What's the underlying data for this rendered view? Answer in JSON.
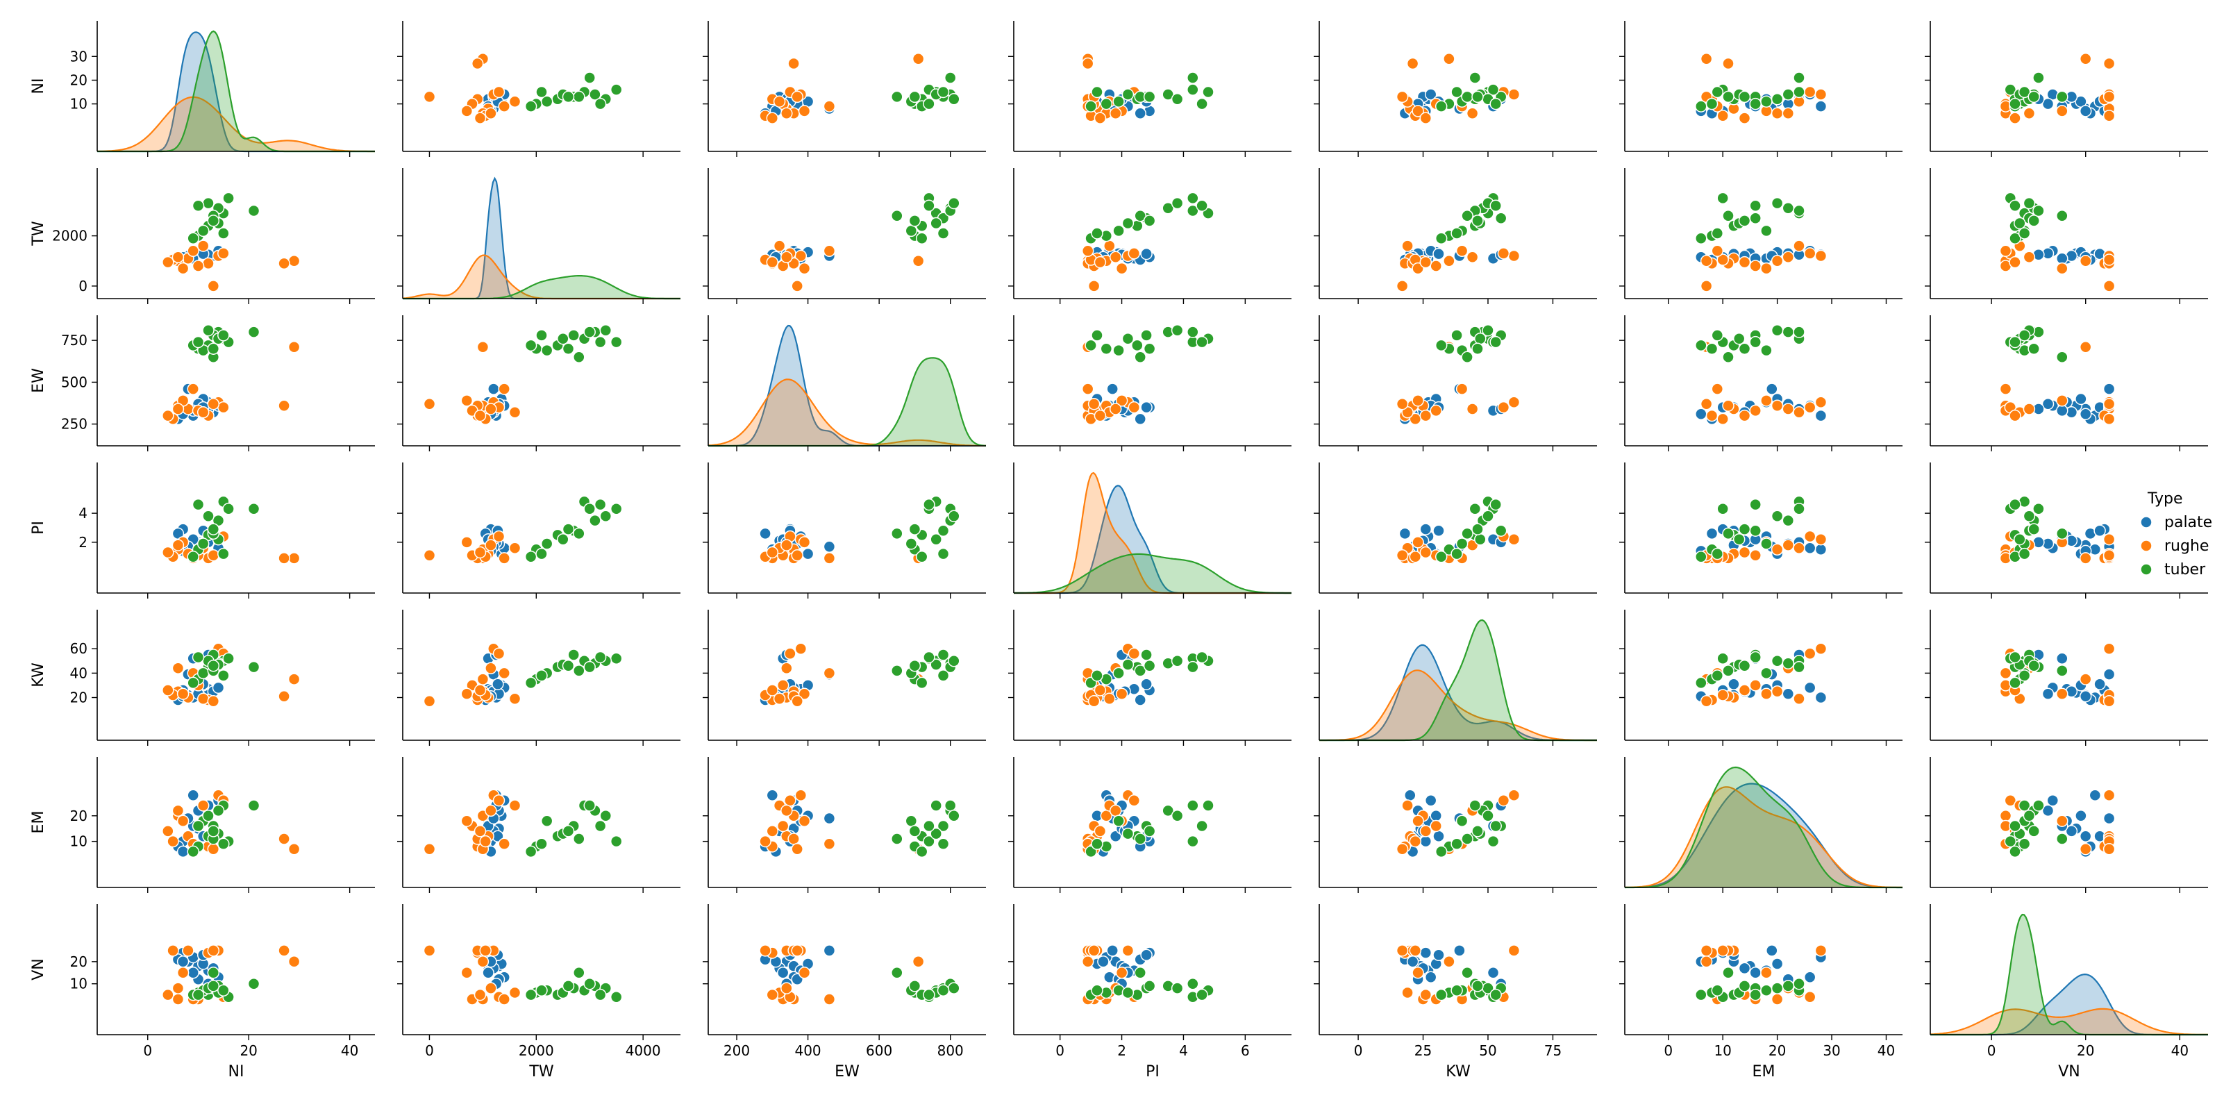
{
  "chart_data": {
    "type": "scatter",
    "title": "",
    "variables": [
      "NI",
      "TW",
      "EW",
      "PI",
      "KW",
      "EM",
      "VN"
    ],
    "ranges": {
      "NI": [
        -10,
        45
      ],
      "TW": [
        -500,
        4700
      ],
      "EW": [
        120,
        900
      ],
      "PI": [
        -1.5,
        7.5
      ],
      "KW": [
        -15,
        92
      ],
      "EM": [
        -8,
        43
      ],
      "VN": [
        -13,
        46
      ]
    },
    "ticks": {
      "NI": [
        0,
        20,
        40
      ],
      "TW": [
        0,
        2000,
        4000
      ],
      "EW": [
        200,
        400,
        600,
        800
      ],
      "PI": [
        0,
        2,
        4,
        6
      ],
      "KW": [
        0,
        25,
        50,
        75
      ],
      "EM": [
        0,
        10,
        20,
        30,
        40
      ],
      "VN": [
        0,
        20,
        40
      ]
    },
    "yticks": {
      "NI": [
        10,
        20,
        30
      ],
      "TW": [
        0,
        2000
      ],
      "EW": [
        250,
        500,
        750
      ],
      "PI": [
        2,
        4
      ],
      "KW": [
        20,
        40,
        60
      ],
      "EM": [
        10,
        20
      ],
      "VN": [
        10,
        20
      ]
    },
    "legend": {
      "title": "Type",
      "position": "right",
      "entries": [
        "palate",
        "rughe",
        "tuber"
      ]
    },
    "series": [
      {
        "name": "palate",
        "color": "#1f77b4",
        "points": [
          [
            8,
            1200,
            340,
            1.8,
            22,
            12,
            20
          ],
          [
            10,
            1300,
            360,
            2.0,
            24,
            15,
            18
          ],
          [
            12,
            1100,
            380,
            2.4,
            27,
            18,
            16
          ],
          [
            9,
            1250,
            300,
            1.5,
            20,
            28,
            22
          ],
          [
            7,
            1150,
            350,
            2.9,
            26,
            10,
            24
          ],
          [
            11,
            1350,
            400,
            1.2,
            30,
            20,
            19
          ],
          [
            13,
            1200,
            320,
            2.1,
            25,
            14,
            17
          ],
          [
            6,
            1050,
            280,
            2.6,
            18,
            8,
            21
          ],
          [
            14,
            1400,
            360,
            1.6,
            28,
            26,
            13
          ],
          [
            10,
            1300,
            370,
            1.9,
            23,
            22,
            12
          ],
          [
            9,
            1100,
            330,
            2.2,
            52,
            16,
            15
          ],
          [
            12,
            1250,
            340,
            2.0,
            55,
            24,
            10
          ],
          [
            8,
            1200,
            460,
            1.7,
            39,
            19,
            25
          ],
          [
            11,
            1280,
            350,
            2.8,
            31,
            12,
            23
          ],
          [
            7,
            1150,
            310,
            1.4,
            21,
            6,
            20
          ]
        ]
      },
      {
        "name": "rughe",
        "color": "#ff7f0e",
        "points": [
          [
            8,
            1100,
            340,
            1.2,
            20,
            12,
            25
          ],
          [
            12,
            900,
            300,
            0.9,
            18,
            8,
            24
          ],
          [
            6,
            1000,
            360,
            1.5,
            25,
            20,
            3
          ],
          [
            14,
            1200,
            380,
            2.2,
            60,
            28,
            25
          ],
          [
            29,
            1000,
            710,
            0.9,
            35,
            7,
            20
          ],
          [
            27,
            900,
            360,
            0.9,
            21,
            11,
            25
          ],
          [
            10,
            800,
            330,
            1.1,
            30,
            16,
            3
          ],
          [
            15,
            1300,
            350,
            2.4,
            56,
            26,
            4
          ],
          [
            5,
            1050,
            280,
            1.0,
            22,
            10,
            25
          ],
          [
            11,
            1600,
            320,
            1.6,
            19,
            24,
            6
          ],
          [
            7,
            700,
            390,
            2.0,
            23,
            18,
            15
          ],
          [
            9,
            1400,
            460,
            0.9,
            40,
            9,
            3
          ],
          [
            13,
            0,
            370,
            1.1,
            17,
            7,
            25
          ],
          [
            4,
            950,
            300,
            1.3,
            26,
            14,
            5
          ],
          [
            6,
            1150,
            340,
            1.8,
            44,
            22,
            8
          ]
        ]
      },
      {
        "name": "tuber",
        "color": "#2ca02c",
        "points": [
          [
            15,
            2900,
            760,
            4.8,
            50,
            24,
            7
          ],
          [
            12,
            2400,
            720,
            2.5,
            45,
            12,
            5
          ],
          [
            14,
            3100,
            800,
            3.5,
            48,
            22,
            9
          ],
          [
            10,
            2000,
            700,
            1.5,
            35,
            8,
            6
          ],
          [
            13,
            2700,
            780,
            2.8,
            55,
            16,
            8
          ],
          [
            16,
            3500,
            740,
            4.3,
            52,
            10,
            4
          ],
          [
            11,
            2200,
            690,
            1.9,
            40,
            18,
            7
          ],
          [
            21,
            3000,
            800,
            4.3,
            45,
            24,
            10
          ],
          [
            9,
            1900,
            720,
            1.0,
            32,
            6,
            5
          ],
          [
            14,
            2500,
            760,
            2.2,
            47,
            13,
            6
          ],
          [
            12,
            3300,
            810,
            3.8,
            50,
            20,
            8
          ],
          [
            13,
            2800,
            650,
            2.6,
            42,
            11,
            15
          ],
          [
            15,
            2100,
            780,
            1.2,
            38,
            9,
            7
          ],
          [
            10,
            3200,
            740,
            4.6,
            53,
            16,
            5
          ],
          [
            13,
            2600,
            700,
            2.9,
            46,
            14,
            9
          ]
        ]
      }
    ]
  }
}
